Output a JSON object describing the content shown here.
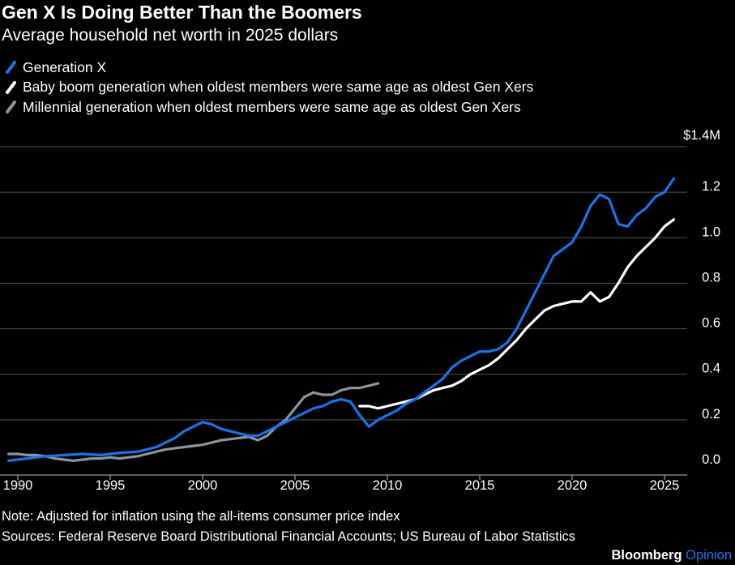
{
  "header": {
    "title": "Gen X Is Doing Better Than the Boomers",
    "subtitle": "Average household net worth in 2025 dollars"
  },
  "footer": {
    "note": "Note: Adjusted for inflation using the all-items consumer price index",
    "sources": "Sources: Federal Reserve Board Distributional Financial Accounts; US Bureau of Labor Statistics",
    "brand_name": "Bloomberg",
    "brand_sub": "Opinion"
  },
  "colors": {
    "background": "#000000",
    "gen_x": "#1a73e8",
    "boomers": "#ffffff",
    "millennials": "#8d949c",
    "grid": "#555555",
    "text": "#ffffff"
  },
  "chart_data": {
    "type": "line",
    "title": "Gen X Is Doing Better Than the Boomers",
    "subtitle": "Average household net worth in 2025 dollars",
    "ylabel": "",
    "xlabel": "",
    "xlim": [
      1989.5,
      2026.8
    ],
    "ylim": [
      0.0,
      1.4
    ],
    "y_unit": "$M",
    "x_ticks": [
      1990,
      1995,
      2000,
      2005,
      2010,
      2015,
      2020,
      2025
    ],
    "x_tick_labels": [
      "1990",
      "1995",
      "2000",
      "2005",
      "2010",
      "2015",
      "2020",
      "2025"
    ],
    "y_ticks": [
      0.0,
      0.2,
      0.4,
      0.6,
      0.8,
      1.0,
      1.2,
      1.4
    ],
    "y_tick_labels": [
      "0.0",
      "0.2",
      "0.4",
      "0.6",
      "0.8",
      "1.0",
      "1.2",
      "$1.4M"
    ],
    "grid": "horizontal",
    "legend_position": "top-left",
    "series": [
      {
        "name": "Generation X",
        "color": "#1a73e8",
        "x": [
          1989.5,
          1990.5,
          1991.5,
          1992.5,
          1993.5,
          1994.5,
          1995.5,
          1996.5,
          1997.5,
          1998,
          1998.5,
          1999,
          1999.5,
          2000,
          2000.5,
          2001,
          2001.5,
          2002,
          2002.5,
          2003,
          2003.5,
          2004,
          2004.5,
          2005,
          2005.5,
          2006,
          2006.5,
          2007,
          2007.5,
          2008,
          2008.5,
          2009,
          2009.5,
          2010,
          2010.5,
          2011,
          2011.5,
          2012,
          2012.5,
          2013,
          2013.5,
          2014,
          2014.5,
          2015,
          2015.5,
          2016,
          2016.5,
          2017,
          2017.5,
          2018,
          2018.5,
          2019,
          2019.5,
          2020,
          2020.5,
          2021,
          2021.5,
          2022,
          2022.5,
          2023,
          2023.5,
          2024,
          2024.5,
          2025,
          2025.5
        ],
        "values": [
          0.02,
          0.03,
          0.04,
          0.045,
          0.05,
          0.045,
          0.055,
          0.06,
          0.08,
          0.1,
          0.12,
          0.15,
          0.17,
          0.19,
          0.18,
          0.16,
          0.15,
          0.14,
          0.13,
          0.13,
          0.15,
          0.17,
          0.19,
          0.21,
          0.23,
          0.25,
          0.26,
          0.28,
          0.29,
          0.28,
          0.22,
          0.17,
          0.2,
          0.22,
          0.24,
          0.27,
          0.29,
          0.32,
          0.35,
          0.38,
          0.43,
          0.46,
          0.48,
          0.5,
          0.5,
          0.51,
          0.54,
          0.6,
          0.68,
          0.76,
          0.84,
          0.92,
          0.95,
          0.98,
          1.05,
          1.14,
          1.19,
          1.17,
          1.06,
          1.05,
          1.1,
          1.13,
          1.18,
          1.2,
          1.26
        ]
      },
      {
        "name": "Baby boom generation when oldest members were same age as oldest Gen Xers",
        "color": "#ffffff",
        "x": [
          2008.5,
          2009,
          2009.5,
          2010,
          2010.5,
          2011,
          2011.5,
          2012,
          2012.5,
          2013,
          2013.5,
          2014,
          2014.5,
          2015,
          2015.5,
          2016,
          2016.5,
          2017,
          2017.5,
          2018,
          2018.5,
          2019,
          2019.5,
          2020,
          2020.5,
          2021,
          2021.5,
          2022,
          2022.5,
          2023,
          2023.5,
          2024,
          2024.5,
          2025,
          2025.5
        ],
        "values": [
          0.26,
          0.26,
          0.25,
          0.26,
          0.27,
          0.28,
          0.29,
          0.31,
          0.33,
          0.34,
          0.35,
          0.37,
          0.4,
          0.42,
          0.44,
          0.47,
          0.51,
          0.55,
          0.6,
          0.64,
          0.68,
          0.7,
          0.71,
          0.72,
          0.72,
          0.76,
          0.72,
          0.74,
          0.8,
          0.87,
          0.92,
          0.96,
          1.0,
          1.05,
          1.08
        ]
      },
      {
        "name": "Millennial generation when oldest members were same age as oldest Gen Xers",
        "color": "#8d949c",
        "x": [
          1989.5,
          1990,
          1990.5,
          1991,
          1991.5,
          1992,
          1992.5,
          1993,
          1993.5,
          1994,
          1994.5,
          1995,
          1995.5,
          1996,
          1996.5,
          1997,
          1997.5,
          1998,
          1998.5,
          1999,
          1999.5,
          2000,
          2000.5,
          2001,
          2001.5,
          2002,
          2002.5,
          2003,
          2003.5,
          2004,
          2004.5,
          2005,
          2005.5,
          2006,
          2006.5,
          2007,
          2007.5,
          2008,
          2008.5,
          2009,
          2009.5
        ],
        "values": [
          0.05,
          0.05,
          0.045,
          0.045,
          0.04,
          0.03,
          0.025,
          0.02,
          0.025,
          0.03,
          0.03,
          0.035,
          0.03,
          0.035,
          0.04,
          0.05,
          0.06,
          0.07,
          0.075,
          0.08,
          0.085,
          0.09,
          0.1,
          0.11,
          0.115,
          0.12,
          0.125,
          0.11,
          0.13,
          0.17,
          0.2,
          0.25,
          0.3,
          0.32,
          0.31,
          0.31,
          0.33,
          0.34,
          0.34,
          0.35,
          0.36
        ]
      }
    ]
  }
}
